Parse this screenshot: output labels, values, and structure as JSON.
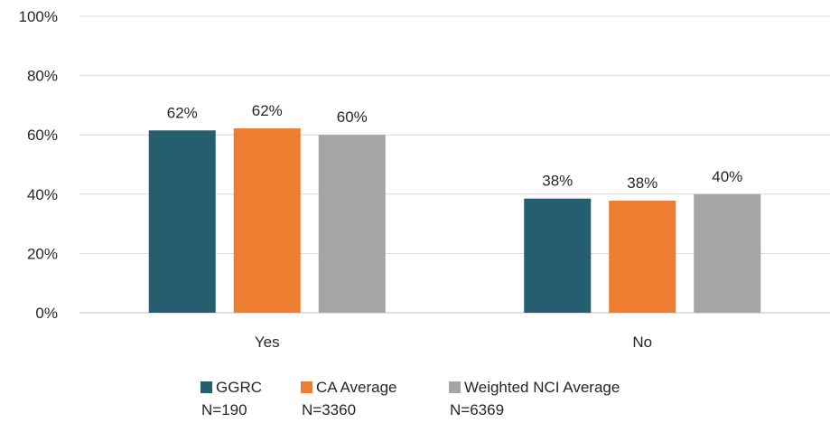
{
  "chart_data": {
    "type": "bar",
    "categories": [
      "Yes",
      "No"
    ],
    "series": [
      {
        "name": "GGRC",
        "sub": "N=190",
        "values": [
          61.5,
          38.5
        ],
        "labels": [
          "62%",
          "38%"
        ],
        "color": "#255E6E"
      },
      {
        "name": "CA Average",
        "sub": "N=3360",
        "values": [
          62.2,
          37.8
        ],
        "labels": [
          "62%",
          "38%"
        ],
        "color": "#ED7D31"
      },
      {
        "name": "Weighted NCI Average",
        "sub": "N=6369",
        "values": [
          60,
          40
        ],
        "labels": [
          "60%",
          "40%"
        ],
        "color": "#A5A5A5"
      }
    ],
    "ylim": [
      0,
      100
    ],
    "yticks": [
      "0%",
      "20%",
      "40%",
      "60%",
      "80%",
      "100%"
    ],
    "grid": true,
    "legend": "bottom",
    "title": "",
    "xlabel": "",
    "ylabel": ""
  }
}
